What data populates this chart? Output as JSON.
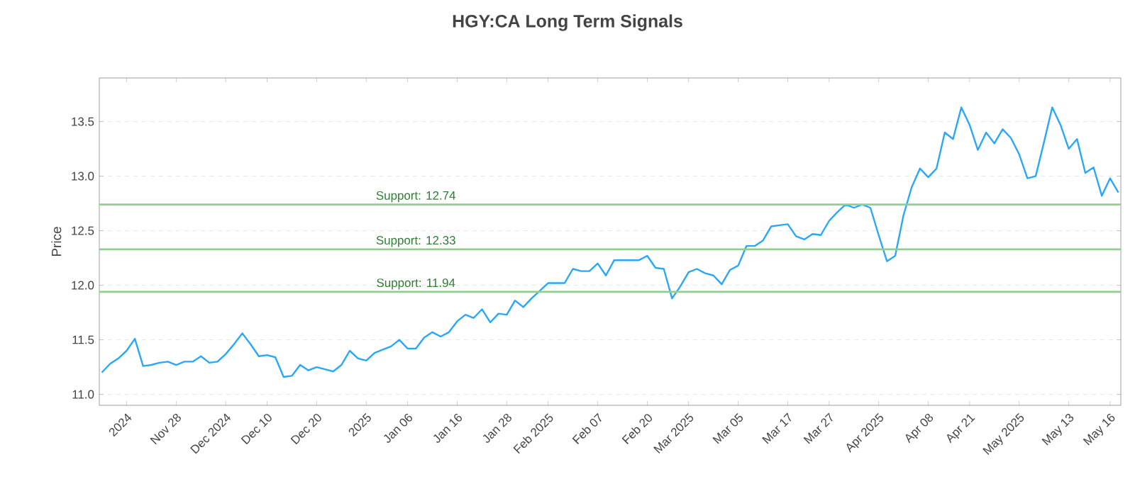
{
  "chart_data": {
    "type": "line",
    "title": "HGY:CA Long Term Signals",
    "ylabel": "Price",
    "categories": [
      null,
      null,
      null,
      "2024",
      null,
      null,
      null,
      null,
      null,
      "Nov 28",
      null,
      null,
      null,
      null,
      null,
      "Dec 2024",
      null,
      null,
      null,
      null,
      "Dec 10",
      null,
      null,
      null,
      null,
      null,
      "Dec 20",
      null,
      null,
      null,
      null,
      null,
      "2025",
      null,
      null,
      null,
      null,
      "Jan 06",
      null,
      null,
      null,
      null,
      null,
      "Jan 16",
      null,
      null,
      null,
      null,
      null,
      "Jan 28",
      null,
      null,
      null,
      null,
      "Feb 2025",
      null,
      null,
      null,
      null,
      null,
      "Feb 07",
      null,
      null,
      null,
      null,
      null,
      "Feb 20",
      null,
      null,
      null,
      null,
      "Mar 2025",
      null,
      null,
      null,
      null,
      null,
      "Mar 05",
      null,
      null,
      null,
      null,
      null,
      "Mar 17",
      null,
      null,
      null,
      null,
      "Mar 27",
      null,
      null,
      null,
      null,
      null,
      "Apr 2025",
      null,
      null,
      null,
      null,
      null,
      "Apr 08",
      null,
      null,
      null,
      null,
      "Apr 21",
      null,
      null,
      null,
      null,
      null,
      "May 2025",
      null,
      null,
      null,
      null,
      null,
      "May 13",
      null,
      null,
      null,
      null,
      "May 16",
      null
    ],
    "series": [
      {
        "color": "#2aa7f7",
        "values": [
          11.2,
          11.28,
          11.33,
          11.4,
          11.51,
          11.26,
          11.27,
          11.29,
          11.3,
          11.27,
          11.3,
          11.3,
          11.35,
          11.29,
          11.3,
          11.37,
          11.46,
          11.56,
          11.46,
          11.35,
          11.36,
          11.34,
          11.16,
          11.17,
          11.27,
          11.22,
          11.25,
          11.23,
          11.21,
          11.27,
          11.4,
          11.33,
          11.31,
          11.38,
          11.41,
          11.44,
          11.5,
          11.42,
          11.42,
          11.52,
          11.57,
          11.53,
          11.57,
          11.67,
          11.73,
          11.7,
          11.78,
          11.66,
          11.74,
          11.73,
          11.86,
          11.8,
          11.88,
          11.95,
          12.02,
          12.02,
          12.02,
          12.15,
          12.13,
          12.13,
          12.2,
          12.09,
          12.23,
          12.23,
          12.23,
          12.23,
          12.27,
          12.16,
          12.15,
          11.88,
          11.99,
          12.12,
          12.15,
          12.11,
          12.09,
          12.01,
          12.14,
          12.18,
          12.36,
          12.36,
          12.41,
          12.54,
          12.55,
          12.56,
          12.45,
          12.42,
          12.47,
          12.46,
          12.59,
          12.67,
          12.74,
          12.71,
          12.74,
          12.71,
          12.46,
          12.22,
          12.27,
          12.64,
          12.9,
          13.07,
          12.99,
          13.07,
          13.4,
          13.34,
          13.63,
          13.47,
          13.24,
          13.4,
          13.3,
          13.43,
          13.35,
          13.2,
          12.98,
          13.0,
          13.31,
          13.63,
          13.47,
          13.25,
          13.34,
          13.03,
          13.08,
          12.82,
          12.98,
          12.85
        ]
      }
    ],
    "ylim": [
      10.9,
      13.9
    ],
    "yticks": [
      {
        "value": 11,
        "label": "11.0"
      },
      {
        "value": 11.5,
        "label": "11.5"
      },
      {
        "value": 12,
        "label": "12.0"
      },
      {
        "value": 12.5,
        "label": "12.5"
      },
      {
        "value": 13,
        "label": "13.0"
      },
      {
        "value": 13.5,
        "label": "13.5"
      }
    ],
    "ref_lines": [
      {
        "axis": "y",
        "value": 12.74,
        "label": "Support: 12.74",
        "color": "#8fd08f"
      },
      {
        "axis": "y",
        "value": 12.33,
        "label": "Support: 12.33",
        "color": "#8fd08f"
      },
      {
        "axis": "y",
        "value": 11.94,
        "label": "Support: 11.94",
        "color": "#8fd08f"
      }
    ],
    "grid": "y",
    "marker": "none",
    "line_style": "solid"
  }
}
